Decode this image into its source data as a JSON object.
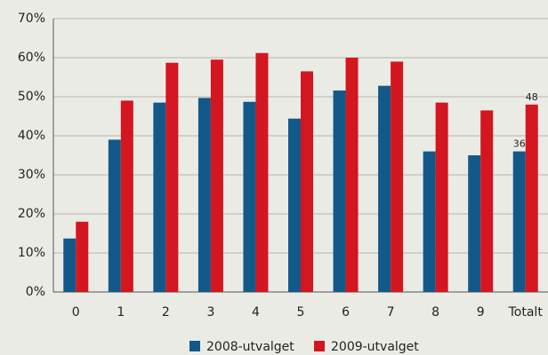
{
  "chart_data": {
    "type": "bar",
    "categories": [
      "0",
      "1",
      "2",
      "3",
      "4",
      "5",
      "6",
      "7",
      "8",
      "9",
      "Totalt"
    ],
    "series": [
      {
        "name": "2008-utvalget",
        "color": "#12598a",
        "values": [
          13.7,
          39,
          48.5,
          49.7,
          48.7,
          44.4,
          51.6,
          52.8,
          36,
          35,
          36
        ],
        "value_labels": [
          null,
          null,
          null,
          null,
          null,
          null,
          null,
          null,
          null,
          null,
          "36"
        ]
      },
      {
        "name": "2009-utvalget",
        "color": "#d3161f",
        "values": [
          18,
          49,
          58.7,
          59.5,
          61.2,
          56.5,
          60,
          59,
          48.5,
          46.5,
          48
        ],
        "value_labels": [
          null,
          null,
          null,
          null,
          null,
          null,
          null,
          null,
          null,
          null,
          "48"
        ]
      }
    ],
    "ylim": [
      0,
      70
    ],
    "yticks": [
      {
        "value": 0,
        "label": "0%"
      },
      {
        "value": 10,
        "label": "10%"
      },
      {
        "value": 20,
        "label": "20%"
      },
      {
        "value": 30,
        "label": "30%"
      },
      {
        "value": 40,
        "label": "40%"
      },
      {
        "value": 50,
        "label": "50%"
      },
      {
        "value": 60,
        "label": "60%"
      },
      {
        "value": 70,
        "label": "70%"
      }
    ],
    "grid": true,
    "legend": "bottom"
  }
}
